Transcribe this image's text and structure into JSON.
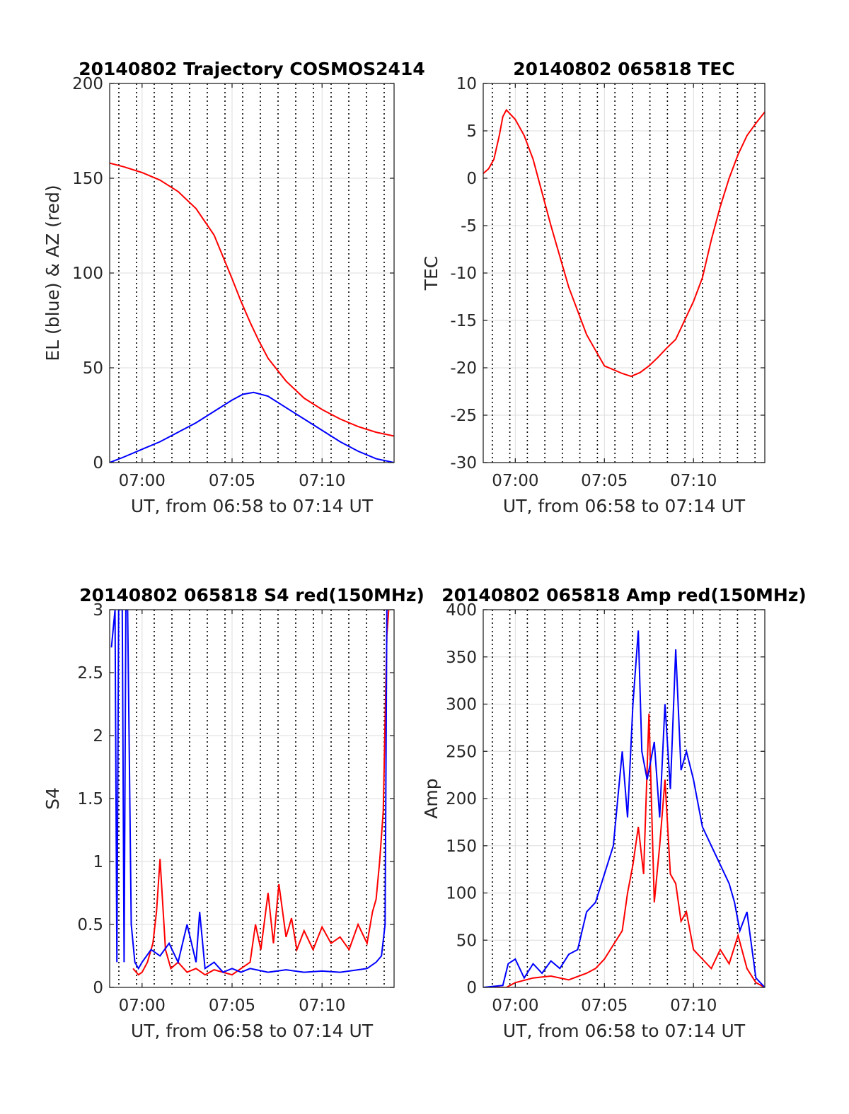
{
  "chart_data": [
    {
      "type": "line",
      "title": "20140802 Trajectory COSMOS2414",
      "xlabel": "UT, from 06:58 to 07:14 UT",
      "ylabel": "EL (blue) & AZ (red)",
      "xlim": [
        418.2,
        434.0
      ],
      "ylim": [
        0,
        200
      ],
      "xticks": [
        420,
        425,
        430
      ],
      "xticklabels": [
        "07:00",
        "07:05",
        "07:10"
      ],
      "yticks": [
        0,
        50,
        100,
        150,
        200
      ],
      "yticklabels": [
        "0",
        "50",
        "100",
        "150",
        "200"
      ],
      "grid": true,
      "series": [
        {
          "color": "#ff0000",
          "x": [
            418.2,
            419,
            420,
            421,
            422,
            423,
            424,
            425,
            425.5,
            426,
            426.5,
            427,
            428,
            429,
            430,
            431,
            432,
            433,
            434
          ],
          "values": [
            158,
            156,
            153,
            149,
            143,
            134,
            120,
            97,
            85,
            74,
            64,
            55,
            43,
            34,
            28,
            23,
            19,
            16,
            14
          ]
        },
        {
          "color": "#0000ff",
          "x": [
            418.2,
            419,
            420,
            421,
            422,
            423,
            424,
            425,
            425.6,
            426.2,
            427,
            428,
            429,
            430,
            431,
            432,
            433,
            434
          ],
          "values": [
            0,
            3,
            7,
            11,
            16,
            21,
            27,
            33,
            36,
            37,
            35,
            29,
            23,
            17,
            11,
            6,
            2,
            0
          ]
        }
      ]
    },
    {
      "type": "line",
      "title": "20140802 065818 TEC",
      "xlabel": "UT, from 06:58 to 07:14 UT",
      "ylabel": "TEC",
      "xlim": [
        418.2,
        434.0
      ],
      "ylim": [
        -30,
        10
      ],
      "xticks": [
        420,
        425,
        430
      ],
      "xticklabels": [
        "07:00",
        "07:05",
        "07:10"
      ],
      "yticks": [
        -30,
        -25,
        -20,
        -15,
        -10,
        -5,
        0,
        5,
        10
      ],
      "yticklabels": [
        "-30",
        "-25",
        "-20",
        "-15",
        "-10",
        "-5",
        "0",
        "5",
        "10"
      ],
      "grid": true,
      "series": [
        {
          "color": "#ff0000",
          "x": [
            418.2,
            418.5,
            418.8,
            419.1,
            419.3,
            419.5,
            420,
            420.5,
            421,
            421.5,
            422,
            423,
            424,
            425,
            426,
            426.5,
            427,
            427.5,
            428,
            428.5,
            429,
            429.5,
            430,
            430.5,
            431,
            431.5,
            432,
            432.5,
            433,
            433.5,
            434
          ],
          "values": [
            0.5,
            1.0,
            2.0,
            4.5,
            6.5,
            7.2,
            6.2,
            4.5,
            2.0,
            -1.5,
            -5.0,
            -11.5,
            -16.5,
            -19.8,
            -20.6,
            -20.9,
            -20.5,
            -19.8,
            -18.9,
            -17.9,
            -17.0,
            -15.0,
            -13.0,
            -10.5,
            -6.5,
            -3.0,
            0.0,
            2.5,
            4.5,
            5.8,
            7.0
          ]
        }
      ]
    },
    {
      "type": "line",
      "title": "20140802 065818 S4 red(150MHz)",
      "xlabel": "UT, from 06:58 to 07:14 UT",
      "ylabel": "S4",
      "xlim": [
        418.2,
        434.0
      ],
      "ylim": [
        0,
        3
      ],
      "xticks": [
        420,
        425,
        430
      ],
      "xticklabels": [
        "07:00",
        "07:05",
        "07:10"
      ],
      "yticks": [
        0,
        0.5,
        1,
        1.5,
        2,
        2.5,
        3
      ],
      "yticklabels": [
        "0",
        "0.5",
        "1",
        "1.5",
        "2",
        "2.5",
        "3"
      ],
      "grid": true,
      "series": [
        {
          "color": "#ff0000",
          "x": [
            419.5,
            419.8,
            420,
            420.3,
            420.6,
            420.8,
            421,
            421.3,
            421.6,
            422,
            422.5,
            423,
            423.5,
            424,
            424.5,
            425,
            425.5,
            426,
            426.3,
            426.6,
            427,
            427.3,
            427.6,
            428,
            428.3,
            428.6,
            429,
            429.5,
            430,
            430.5,
            431,
            431.5,
            432,
            432.5,
            432.8,
            433,
            433.2,
            433.4,
            433.6,
            433.7
          ],
          "values": [
            0.15,
            0.1,
            0.12,
            0.2,
            0.35,
            0.6,
            1.02,
            0.3,
            0.15,
            0.2,
            0.12,
            0.15,
            0.1,
            0.14,
            0.12,
            0.1,
            0.15,
            0.2,
            0.5,
            0.3,
            0.75,
            0.35,
            0.82,
            0.4,
            0.55,
            0.3,
            0.45,
            0.3,
            0.48,
            0.35,
            0.4,
            0.3,
            0.5,
            0.35,
            0.6,
            0.7,
            1.0,
            1.4,
            2.8,
            3.0
          ]
        },
        {
          "color": "#0000ff",
          "x": [
            418.3,
            418.5,
            418.6,
            418.7,
            418.9,
            419.0,
            419.1,
            419.2,
            419.4,
            419.6,
            419.8,
            420,
            420.5,
            421,
            421.5,
            422,
            422.5,
            423,
            423.2,
            423.5,
            424,
            424.5,
            425,
            425.5,
            426,
            427,
            428,
            429,
            430,
            431,
            432,
            432.5,
            433,
            433.3,
            433.5,
            433.6,
            433.7
          ],
          "values": [
            2.7,
            3.0,
            0.2,
            3.0,
            3.0,
            0.2,
            3.0,
            3.0,
            0.5,
            0.2,
            0.15,
            0.2,
            0.3,
            0.25,
            0.35,
            0.2,
            0.5,
            0.2,
            0.6,
            0.15,
            0.2,
            0.12,
            0.15,
            0.12,
            0.15,
            0.12,
            0.14,
            0.12,
            0.13,
            0.12,
            0.14,
            0.15,
            0.2,
            0.25,
            0.5,
            3.0,
            3.0
          ]
        }
      ]
    },
    {
      "type": "line",
      "title": "20140802 065818 Amp red(150MHz)",
      "xlabel": "UT, from 06:58 to 07:14 UT",
      "ylabel": "Amp",
      "xlim": [
        418.2,
        434.0
      ],
      "ylim": [
        0,
        400
      ],
      "xticks": [
        420,
        425,
        430
      ],
      "xticklabels": [
        "07:00",
        "07:05",
        "07:10"
      ],
      "yticks": [
        0,
        50,
        100,
        150,
        200,
        250,
        300,
        350,
        400
      ],
      "yticklabels": [
        "0",
        "50",
        "100",
        "150",
        "200",
        "250",
        "300",
        "350",
        "400"
      ],
      "grid": true,
      "series": [
        {
          "color": "#ff0000",
          "x": [
            418.2,
            419.5,
            420,
            421,
            422,
            423,
            424,
            424.5,
            425,
            425.5,
            426,
            426.3,
            426.6,
            426.9,
            427.2,
            427.5,
            427.8,
            428.1,
            428.4,
            428.7,
            429,
            429.3,
            429.6,
            430,
            430.5,
            431,
            431.5,
            432,
            432.5,
            433,
            433.5,
            434
          ],
          "values": [
            0,
            0,
            5,
            10,
            12,
            8,
            15,
            20,
            30,
            45,
            60,
            100,
            130,
            170,
            120,
            290,
            90,
            150,
            220,
            120,
            110,
            70,
            80,
            40,
            30,
            20,
            40,
            25,
            55,
            20,
            5,
            0
          ]
        },
        {
          "color": "#0000ff",
          "x": [
            418.2,
            419.3,
            419.6,
            420,
            420.5,
            421,
            421.5,
            422,
            422.5,
            423,
            423.5,
            424,
            424.5,
            425,
            425.5,
            426,
            426.3,
            426.6,
            426.9,
            427.1,
            427.4,
            427.8,
            428.1,
            428.4,
            428.7,
            429,
            429.3,
            429.6,
            430,
            430.5,
            431,
            431.5,
            432,
            432.3,
            432.6,
            433,
            433.5,
            434
          ],
          "values": [
            0,
            2,
            25,
            30,
            10,
            25,
            15,
            28,
            20,
            35,
            40,
            80,
            90,
            120,
            150,
            250,
            180,
            300,
            378,
            250,
            220,
            260,
            180,
            300,
            210,
            358,
            230,
            250,
            220,
            170,
            150,
            130,
            110,
            90,
            60,
            80,
            10,
            0
          ]
        }
      ]
    }
  ]
}
